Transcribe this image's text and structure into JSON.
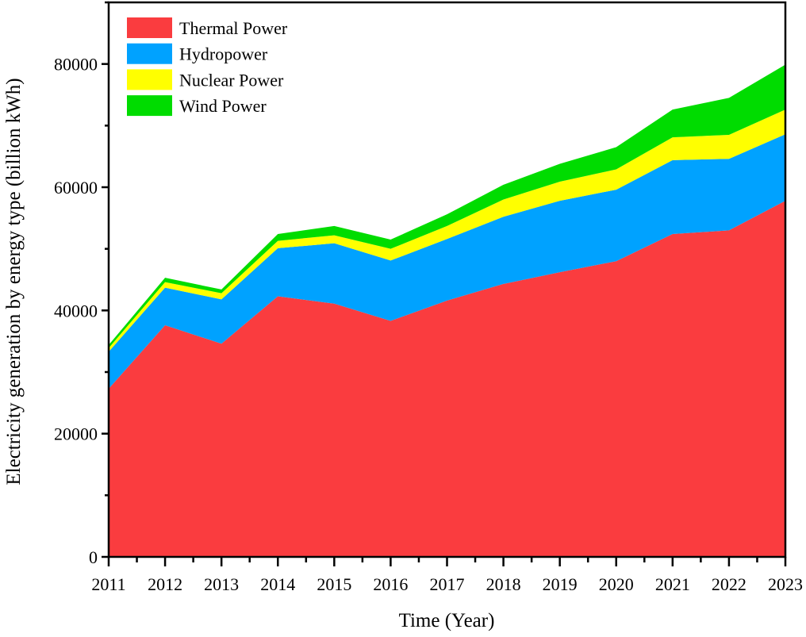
{
  "chart_data": {
    "type": "area",
    "stacked": true,
    "title": "",
    "xlabel": "Time (Year)",
    "ylabel": "Electricity generation by energy type (billion kWh)",
    "x": [
      2011,
      2012,
      2013,
      2014,
      2015,
      2016,
      2017,
      2018,
      2019,
      2020,
      2021,
      2022,
      2023
    ],
    "xlim": [
      2011,
      2023
    ],
    "ylim": [
      0,
      90000
    ],
    "yticks": [
      0,
      20000,
      40000,
      60000,
      80000
    ],
    "grid": false,
    "legend_position": "top-left",
    "series": [
      {
        "name": "Thermal Power",
        "color": "#fa3c3f",
        "values": [
          27300,
          37600,
          34600,
          42300,
          41100,
          38300,
          41600,
          44300,
          46200,
          48000,
          52400,
          53000,
          57800
        ]
      },
      {
        "name": "Hydropower",
        "color": "#00a2ff",
        "values": [
          6000,
          6100,
          7200,
          7800,
          9800,
          9800,
          10000,
          10900,
          11600,
          11600,
          12000,
          11600,
          10800
        ]
      },
      {
        "name": "Nuclear Power",
        "color": "#ffff00",
        "values": [
          600,
          900,
          1000,
          1200,
          1300,
          1900,
          2100,
          2800,
          3100,
          3300,
          3700,
          3900,
          4000
        ]
      },
      {
        "name": "Wind Power",
        "color": "#00dc00",
        "values": [
          500,
          700,
          600,
          1100,
          1500,
          1500,
          1900,
          2400,
          2900,
          3600,
          4500,
          6000,
          7300
        ]
      }
    ]
  }
}
